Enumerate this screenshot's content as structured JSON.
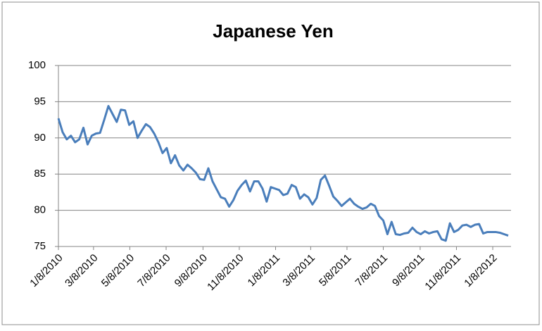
{
  "chart_data": {
    "type": "line",
    "title": "Japanese Yen",
    "x": [
      "1/8/2010",
      "1/15/2010",
      "1/22/2010",
      "1/29/2010",
      "2/5/2010",
      "2/12/2010",
      "2/19/2010",
      "2/26/2010",
      "3/5/2010",
      "3/12/2010",
      "3/19/2010",
      "3/26/2010",
      "4/2/2010",
      "4/9/2010",
      "4/16/2010",
      "4/23/2010",
      "4/30/2010",
      "5/7/2010",
      "5/14/2010",
      "5/21/2010",
      "5/28/2010",
      "6/4/2010",
      "6/11/2010",
      "6/18/2010",
      "6/25/2010",
      "7/2/2010",
      "7/9/2010",
      "7/16/2010",
      "7/23/2010",
      "7/30/2010",
      "8/6/2010",
      "8/13/2010",
      "8/20/2010",
      "8/27/2010",
      "9/3/2010",
      "9/10/2010",
      "9/17/2010",
      "9/24/2010",
      "10/1/2010",
      "10/8/2010",
      "10/15/2010",
      "10/22/2010",
      "10/29/2010",
      "11/5/2010",
      "11/12/2010",
      "11/19/2010",
      "11/26/2010",
      "12/3/2010",
      "12/10/2010",
      "12/17/2010",
      "12/24/2010",
      "12/31/2010",
      "1/7/2011",
      "1/14/2011",
      "1/21/2011",
      "1/28/2011",
      "2/4/2011",
      "2/11/2011",
      "2/18/2011",
      "2/25/2011",
      "3/4/2011",
      "3/11/2011",
      "3/18/2011",
      "3/25/2011",
      "4/1/2011",
      "4/8/2011",
      "4/15/2011",
      "4/22/2011",
      "4/29/2011",
      "5/6/2011",
      "5/13/2011",
      "5/20/2011",
      "5/27/2011",
      "6/3/2011",
      "6/10/2011",
      "6/17/2011",
      "6/24/2011",
      "7/1/2011",
      "7/8/2011",
      "7/15/2011",
      "7/22/2011",
      "7/29/2011",
      "8/5/2011",
      "8/12/2011",
      "8/19/2011",
      "8/26/2011",
      "9/2/2011",
      "9/9/2011",
      "9/16/2011",
      "9/23/2011",
      "9/30/2011",
      "10/7/2011",
      "10/14/2011",
      "10/21/2011",
      "10/28/2011",
      "11/4/2011",
      "11/11/2011",
      "11/18/2011",
      "11/25/2011",
      "12/2/2011",
      "12/9/2011",
      "12/16/2011",
      "12/23/2011",
      "12/30/2011",
      "1/6/2012",
      "1/13/2012",
      "1/20/2012",
      "1/27/2012",
      "2/3/2012"
    ],
    "series": [
      {
        "name": "Japanese Yen",
        "color": "#4a7ebb",
        "values": [
          92.7,
          90.8,
          89.8,
          90.3,
          89.4,
          89.8,
          91.4,
          89.1,
          90.3,
          90.6,
          90.7,
          92.5,
          94.4,
          93.3,
          92.2,
          93.9,
          93.8,
          91.8,
          92.3,
          90.0,
          91.0,
          91.9,
          91.5,
          90.6,
          89.4,
          87.9,
          88.6,
          86.5,
          87.6,
          86.2,
          85.5,
          86.3,
          85.8,
          85.2,
          84.3,
          84.2,
          85.8,
          84.0,
          82.9,
          81.8,
          81.6,
          80.5,
          81.4,
          82.7,
          83.5,
          84.1,
          82.6,
          84.0,
          84.0,
          83.0,
          81.2,
          83.2,
          83.0,
          82.8,
          82.1,
          82.3,
          83.5,
          83.2,
          81.6,
          82.2,
          81.8,
          80.8,
          81.7,
          84.2,
          84.8,
          83.4,
          81.9,
          81.3,
          80.6,
          81.1,
          81.6,
          80.9,
          80.5,
          80.2,
          80.4,
          80.9,
          80.6,
          79.2,
          78.6,
          76.7,
          78.4,
          76.7,
          76.6,
          76.8,
          76.9,
          77.6,
          77.0,
          76.7,
          77.1,
          76.8,
          77.0,
          77.1,
          76.0,
          75.8,
          78.2,
          77.0,
          77.3,
          77.9,
          78.0,
          77.7,
          78.0,
          78.1,
          76.8,
          77.0,
          77.0,
          77.0,
          76.9,
          76.7,
          76.5
        ]
      }
    ],
    "xlim": [
      "1/8/2010",
      "2/3/2012"
    ],
    "xticks": [
      "1/8/2010",
      "3/8/2010",
      "5/8/2010",
      "7/8/2010",
      "9/8/2010",
      "11/8/2010",
      "1/8/2011",
      "3/8/2011",
      "5/8/2011",
      "7/8/2011",
      "9/8/2011",
      "11/8/2011",
      "1/8/2012"
    ],
    "ylim": [
      75,
      100
    ],
    "yticks": [
      75,
      80,
      85,
      90,
      95,
      100
    ],
    "grid": true
  }
}
